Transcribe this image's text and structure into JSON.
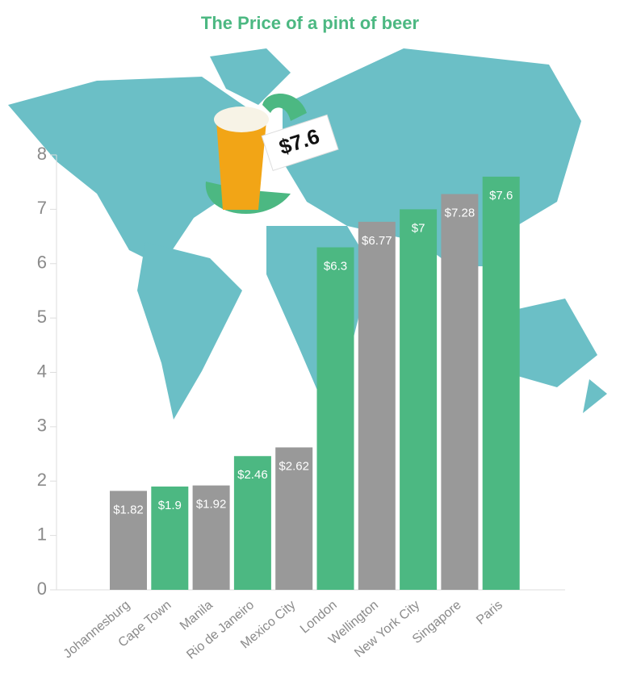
{
  "chart_data": {
    "type": "bar",
    "title": "The Price of a pint of beer",
    "annotation": "$7.6",
    "categories": [
      "Johannesburg",
      "Cape Town",
      "Manila",
      "Rio de Janeiro",
      "Mexico City",
      "London",
      "Wellington",
      "New York City",
      "Singapore",
      "Paris"
    ],
    "values": [
      1.82,
      1.9,
      1.92,
      2.46,
      2.62,
      6.3,
      6.77,
      7,
      7.28,
      7.6
    ],
    "value_labels": [
      "$1.82",
      "$1.9",
      "$1.92",
      "$2.46",
      "$2.62",
      "$6.3",
      "$6.77",
      "$7",
      "$7.28",
      "$7.6"
    ],
    "colors": [
      "#999999",
      "#4cb882",
      "#999999",
      "#4cb882",
      "#999999",
      "#4cb882",
      "#999999",
      "#4cb882",
      "#999999",
      "#4cb882"
    ],
    "ylim": [
      0,
      8
    ],
    "yticks": [
      0,
      1,
      2,
      3,
      4,
      5,
      6,
      7,
      8
    ]
  }
}
